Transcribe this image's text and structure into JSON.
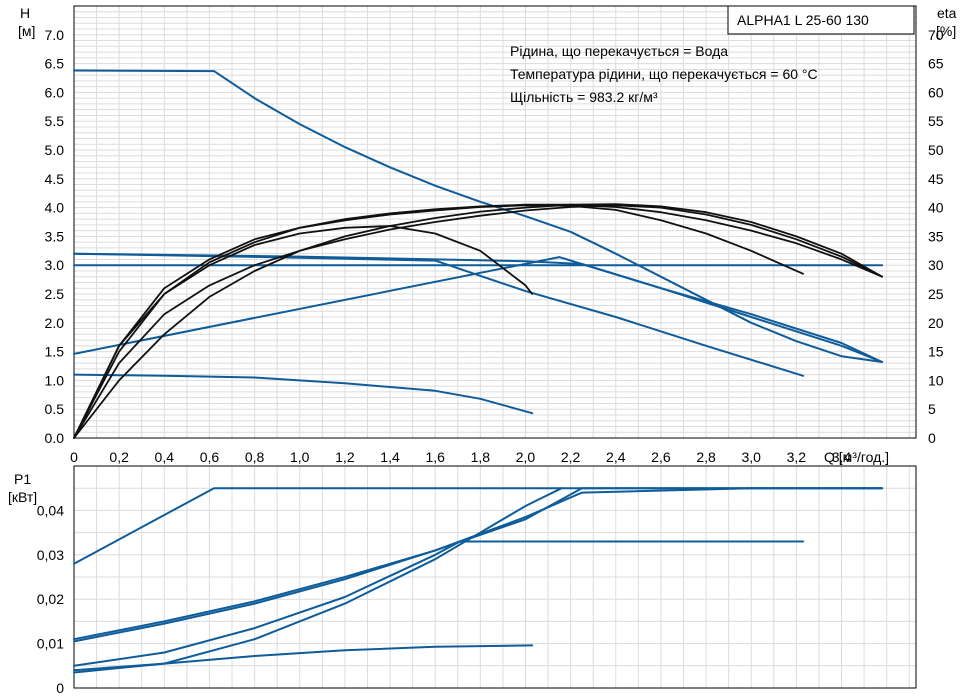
{
  "chart_data": [
    {
      "type": "line",
      "model_label": "ALPHA1 L 25-60 130",
      "annotations": [
        "Рідина, що перекачується = Вода",
        "Температура рідини, що перекачується = 60 °C",
        "Щільність = 983.2 кг/м³"
      ],
      "ylabel_left": "H",
      "yunit_left": "[м]",
      "ylabel_right": "eta",
      "yunit_right": "[%]",
      "xlabel": "Q [м³/год.]",
      "xlim": [
        0,
        3.73
      ],
      "ylim_left": [
        0,
        7.5
      ],
      "ylim_right": [
        0,
        75
      ],
      "xticks": [
        "0",
        "0,2",
        "0,4",
        "0,6",
        "0,8",
        "1,0",
        "1,2",
        "1,4",
        "1,6",
        "1,8",
        "2,0",
        "2,2",
        "2,4",
        "2,6",
        "2,8",
        "3,0",
        "3,2",
        "3,4"
      ],
      "yticks_left": [
        "0.0",
        "0.5",
        "1.0",
        "1.5",
        "2.0",
        "2.5",
        "3.0",
        "3.5",
        "4.0",
        "4.5",
        "5.0",
        "5.5",
        "6.0",
        "6.5",
        "7.0"
      ],
      "yticks_right": [
        "0",
        "5",
        "10",
        "15",
        "20",
        "25",
        "30",
        "35",
        "40",
        "45",
        "50",
        "55",
        "60",
        "65",
        "70"
      ],
      "grid": true,
      "series": [
        {
          "axis": "H",
          "color": "#0f5c9a",
          "x": [
            0,
            0.62,
            0.8,
            1.0,
            1.2,
            1.4,
            1.6,
            1.8,
            2.0,
            2.2,
            2.4,
            2.6,
            2.8,
            3.0,
            3.2,
            3.4,
            3.58
          ],
          "y": [
            6.38,
            6.37,
            5.9,
            5.45,
            5.05,
            4.7,
            4.38,
            4.1,
            3.85,
            3.58,
            3.2,
            2.8,
            2.4,
            2.0,
            1.68,
            1.42,
            1.32
          ]
        },
        {
          "axis": "H",
          "color": "#0f5c9a",
          "x": [
            0,
            1.0,
            2.0,
            2.25,
            2.6,
            3.0,
            3.4,
            3.58
          ],
          "y": [
            3.2,
            3.15,
            3.07,
            3.02,
            2.6,
            2.15,
            1.65,
            1.32
          ]
        },
        {
          "axis": "H",
          "color": "#0f5c9a",
          "x": [
            0,
            1.0,
            2.0,
            2.2,
            2.6,
            3.0,
            3.4,
            3.58
          ],
          "y": [
            3.0,
            3.0,
            3.0,
            3.0,
            3.0,
            3.0,
            3.0,
            3.0
          ]
        },
        {
          "axis": "H",
          "color": "#0f5c9a",
          "x": [
            0,
            2.15,
            2.6,
            3.0,
            3.4,
            3.58
          ],
          "y": [
            1.46,
            3.14,
            2.6,
            2.1,
            1.6,
            1.32
          ]
        },
        {
          "axis": "H",
          "color": "#0f5c9a",
          "x": [
            0,
            1.0,
            1.6,
            2.0,
            2.4,
            2.8,
            3.23
          ],
          "y": [
            3.2,
            3.13,
            3.08,
            2.55,
            2.1,
            1.6,
            1.08
          ]
        },
        {
          "axis": "H",
          "color": "#0f5c9a",
          "x": [
            0,
            0.4,
            0.8,
            1.2,
            1.6,
            1.8,
            2.03
          ],
          "y": [
            1.1,
            1.08,
            1.05,
            0.95,
            0.82,
            0.68,
            0.43
          ]
        },
        {
          "axis": "eta",
          "color": "#111111",
          "x": [
            0,
            0.2,
            0.4,
            0.6,
            0.8,
            1.0,
            1.2,
            1.4,
            1.6,
            1.8,
            2.0,
            2.03
          ],
          "y": [
            0,
            16,
            25,
            30,
            33.5,
            35.5,
            36.5,
            36.8,
            35.5,
            32.5,
            26.5,
            25
          ]
        },
        {
          "axis": "eta",
          "color": "#111111",
          "x": [
            0,
            0.2,
            0.4,
            0.6,
            0.8,
            1.0,
            1.2,
            1.4,
            1.6,
            1.8,
            2.0,
            2.2,
            2.4,
            2.6,
            2.8,
            3.0,
            3.23
          ],
          "y": [
            0,
            16,
            26,
            31,
            34.5,
            36.5,
            37.8,
            38.8,
            39.5,
            40.1,
            40.4,
            40.3,
            39.6,
            37.8,
            35.5,
            32.5,
            28.5
          ]
        },
        {
          "axis": "eta",
          "color": "#111111",
          "x": [
            0,
            0.2,
            0.4,
            0.6,
            0.8,
            1.0,
            1.2,
            1.4,
            1.6,
            1.8,
            2.0,
            2.2,
            2.4,
            2.6,
            2.8,
            3.0,
            3.2,
            3.4,
            3.58
          ],
          "y": [
            0,
            15,
            25,
            30.5,
            34,
            36.5,
            38,
            39,
            39.7,
            40.2,
            40.5,
            40.5,
            40.1,
            39.2,
            37.8,
            36,
            33.8,
            31,
            28
          ]
        },
        {
          "axis": "eta",
          "color": "#111111",
          "x": [
            0,
            0.2,
            0.4,
            0.6,
            0.8,
            1.0,
            1.2,
            1.4,
            1.6,
            1.8,
            2.0,
            2.2,
            2.4,
            2.6,
            2.8,
            3.0,
            3.2,
            3.4,
            3.58
          ],
          "y": [
            0,
            13,
            21.5,
            26.5,
            30,
            32.5,
            34.5,
            36.2,
            37.5,
            38.6,
            39.5,
            40.1,
            40.4,
            40.0,
            38.8,
            37.0,
            34.5,
            31.5,
            28
          ]
        },
        {
          "axis": "eta",
          "color": "#111111",
          "x": [
            0,
            0.2,
            0.4,
            0.6,
            0.8,
            1.0,
            1.2,
            1.4,
            1.6,
            1.8,
            2.0,
            2.2,
            2.4,
            2.6,
            2.8,
            3.0,
            3.2,
            3.4,
            3.58
          ],
          "y": [
            0,
            10,
            18,
            24.5,
            29,
            32.5,
            35,
            36.8,
            38.2,
            39.3,
            40.0,
            40.5,
            40.6,
            40.2,
            39.2,
            37.5,
            35,
            32,
            28
          ]
        }
      ]
    },
    {
      "type": "line",
      "ylabel": "P1",
      "yunit": "[кВт]",
      "xlim": [
        0,
        3.73
      ],
      "ylim": [
        0,
        0.05
      ],
      "yticks": [
        "0",
        "0,01",
        "0,02",
        "0,03",
        "0,04"
      ],
      "grid": true,
      "series": [
        {
          "color": "#0f5c9a",
          "x": [
            0,
            0.62,
            1.0,
            2.0,
            3.0,
            3.58
          ],
          "y": [
            0.028,
            0.045,
            0.045,
            0.045,
            0.045,
            0.045
          ]
        },
        {
          "color": "#0f5c9a",
          "x": [
            0,
            0.4,
            0.8,
            1.2,
            1.6,
            2.0,
            2.25,
            3.0,
            3.58
          ],
          "y": [
            0.011,
            0.015,
            0.0195,
            0.025,
            0.031,
            0.038,
            0.045,
            0.045,
            0.045
          ]
        },
        {
          "color": "#0f5c9a",
          "x": [
            0,
            0.4,
            0.8,
            1.2,
            1.6,
            2.0,
            2.25,
            3.0,
            3.58
          ],
          "y": [
            0.0105,
            0.0145,
            0.019,
            0.0245,
            0.031,
            0.0385,
            0.044,
            0.045,
            0.045
          ]
        },
        {
          "color": "#0f5c9a",
          "x": [
            0,
            0.4,
            0.8,
            1.2,
            1.6,
            1.71,
            2.0,
            3.0,
            3.23
          ],
          "y": [
            0.005,
            0.008,
            0.0135,
            0.0205,
            0.03,
            0.033,
            0.033,
            0.033,
            0.033
          ]
        },
        {
          "color": "#0f5c9a",
          "x": [
            0,
            0.4,
            0.8,
            1.2,
            1.6,
            2.0,
            2.16
          ],
          "y": [
            0.0035,
            0.0055,
            0.011,
            0.019,
            0.029,
            0.041,
            0.045
          ]
        },
        {
          "color": "#0f5c9a",
          "x": [
            0,
            0.4,
            0.8,
            1.2,
            1.6,
            2.03
          ],
          "y": [
            0.004,
            0.0055,
            0.0072,
            0.0085,
            0.0093,
            0.0096
          ]
        }
      ]
    }
  ]
}
